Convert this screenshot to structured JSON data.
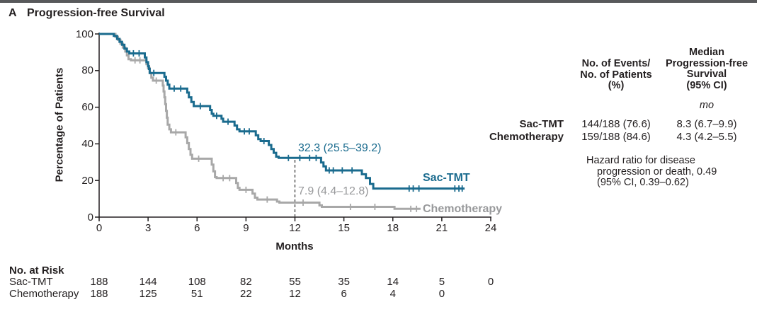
{
  "panel_label": "A",
  "title": "Progression-free Survival",
  "axes": {
    "x_label": "Months",
    "y_label": "Percentage of Patients"
  },
  "annotations": {
    "sac_tmt_rate": "32.3 (25.5–39.2)",
    "chemo_rate": "7.9 (4.4–12.8)",
    "sac_tmt_curve_label": "Sac-TMT",
    "chemo_curve_label": "Chemotherapy"
  },
  "stats_table": {
    "col1_header_lines": [
      "No. of Events/",
      "No. of Patients",
      "(%)"
    ],
    "col2_header_lines": [
      "Median",
      "Progression-free",
      "Survival",
      "(95% CI)"
    ],
    "unit": "mo",
    "rows": [
      {
        "label": "Sac-TMT",
        "events": "144/188 (76.6)",
        "median": "8.3 (6.7–9.9)"
      },
      {
        "label": "Chemotherapy",
        "events": "159/188 (84.6)",
        "median": "4.3 (4.2–5.5)"
      }
    ],
    "hazard_lines": [
      "Hazard ratio for disease",
      "progression or death, 0.49",
      "(95% CI, 0.39–0.62)"
    ]
  },
  "at_risk": {
    "title": "No. at Risk",
    "rows": [
      {
        "label": "Sac-TMT",
        "values": [
          188,
          144,
          108,
          82,
          55,
          35,
          14,
          5,
          0
        ]
      },
      {
        "label": "Chemotherapy",
        "values": [
          188,
          125,
          51,
          22,
          12,
          6,
          4,
          0
        ]
      }
    ]
  },
  "colors": {
    "sac_tmt": "#1a6b8e",
    "chemo_line": "#a8a8a8",
    "chemo_text": "#98999b",
    "text": "#231f20",
    "top_bar": "#58595b",
    "dashed_line": "#3c3c3c"
  },
  "chart_data": {
    "type": "line",
    "subtype": "kaplan-meier-step",
    "title": "Progression-free Survival",
    "xlabel": "Months",
    "ylabel": "Percentage of Patients",
    "xlim": [
      0,
      24
    ],
    "ylim": [
      0,
      100
    ],
    "x_ticks": [
      0,
      3,
      6,
      9,
      12,
      15,
      18,
      21,
      24
    ],
    "y_ticks": [
      0,
      20,
      40,
      60,
      80,
      100
    ],
    "grid": false,
    "landmark": {
      "x": 12,
      "sac_tmt_value": 32.3,
      "sac_tmt_ci": [
        25.5,
        39.2
      ],
      "chemo_value": 7.9,
      "chemo_ci": [
        4.4,
        12.8
      ]
    },
    "medians": {
      "sac_tmt": 8.3,
      "chemo": 4.3
    },
    "series": [
      {
        "name": "Chemotherapy",
        "color": "#a8a8a8",
        "points": [
          [
            0,
            100
          ],
          [
            1.0,
            100
          ],
          [
            1.0,
            98.4
          ],
          [
            1.15,
            98.4
          ],
          [
            1.15,
            96.8
          ],
          [
            1.3,
            96.8
          ],
          [
            1.3,
            94.7
          ],
          [
            1.45,
            94.7
          ],
          [
            1.45,
            92.6
          ],
          [
            1.6,
            92.6
          ],
          [
            1.6,
            90.4
          ],
          [
            1.7,
            90.4
          ],
          [
            1.7,
            88.3
          ],
          [
            1.8,
            88.3
          ],
          [
            1.8,
            86.2
          ],
          [
            1.95,
            86.2
          ],
          [
            1.95,
            85.6
          ],
          [
            2.9,
            85.6
          ],
          [
            2.9,
            83.5
          ],
          [
            3.0,
            83.5
          ],
          [
            3.0,
            81.4
          ],
          [
            3.1,
            81.4
          ],
          [
            3.1,
            78.7
          ],
          [
            3.2,
            78.7
          ],
          [
            3.2,
            76.1
          ],
          [
            3.3,
            76.1
          ],
          [
            3.3,
            74.5
          ],
          [
            3.9,
            74.5
          ],
          [
            3.9,
            71.8
          ],
          [
            3.95,
            71.8
          ],
          [
            3.95,
            68.6
          ],
          [
            4.0,
            68.6
          ],
          [
            4.0,
            65.4
          ],
          [
            4.05,
            65.4
          ],
          [
            4.05,
            61.7
          ],
          [
            4.1,
            61.7
          ],
          [
            4.1,
            58.0
          ],
          [
            4.15,
            58.0
          ],
          [
            4.15,
            54.3
          ],
          [
            4.2,
            54.3
          ],
          [
            4.2,
            50.5
          ],
          [
            4.3,
            50.5
          ],
          [
            4.3,
            47.9
          ],
          [
            4.4,
            47.9
          ],
          [
            4.4,
            46.3
          ],
          [
            5.3,
            46.3
          ],
          [
            5.3,
            43.6
          ],
          [
            5.4,
            43.6
          ],
          [
            5.4,
            40.4
          ],
          [
            5.5,
            40.4
          ],
          [
            5.5,
            37.2
          ],
          [
            5.6,
            37.2
          ],
          [
            5.6,
            34.0
          ],
          [
            5.7,
            34.0
          ],
          [
            5.7,
            31.9
          ],
          [
            6.9,
            31.9
          ],
          [
            6.9,
            28.7
          ],
          [
            7.0,
            28.7
          ],
          [
            7.0,
            25.0
          ],
          [
            7.1,
            25.0
          ],
          [
            7.1,
            21.8
          ],
          [
            7.2,
            21.8
          ],
          [
            7.2,
            21.3
          ],
          [
            8.4,
            21.3
          ],
          [
            8.4,
            18.6
          ],
          [
            8.5,
            18.6
          ],
          [
            8.5,
            16.0
          ],
          [
            8.6,
            16.0
          ],
          [
            8.6,
            14.9
          ],
          [
            9.4,
            14.9
          ],
          [
            9.4,
            12.8
          ],
          [
            9.55,
            12.8
          ],
          [
            9.55,
            10.6
          ],
          [
            9.7,
            10.6
          ],
          [
            9.7,
            9.6
          ],
          [
            10.9,
            9.6
          ],
          [
            10.9,
            8.5
          ],
          [
            11.05,
            8.5
          ],
          [
            11.05,
            7.9
          ],
          [
            13.5,
            7.9
          ],
          [
            13.5,
            6.4
          ],
          [
            13.65,
            6.4
          ],
          [
            13.65,
            5.6
          ],
          [
            18.1,
            5.6
          ],
          [
            18.1,
            4.5
          ],
          [
            19.7,
            4.5
          ]
        ],
        "censors": [
          [
            2.2,
            85.6
          ],
          [
            2.5,
            85.6
          ],
          [
            3.5,
            74.5
          ],
          [
            4.7,
            46.3
          ],
          [
            6.1,
            31.9
          ],
          [
            7.6,
            21.3
          ],
          [
            8.0,
            21.3
          ],
          [
            9.0,
            14.9
          ],
          [
            10.3,
            9.6
          ],
          [
            12.5,
            7.9
          ],
          [
            15.4,
            5.6
          ],
          [
            16.9,
            5.6
          ],
          [
            19.1,
            4.5
          ],
          [
            19.45,
            4.5
          ]
        ]
      },
      {
        "name": "Sac-TMT",
        "color": "#1a6b8e",
        "points": [
          [
            0,
            100
          ],
          [
            0.9,
            100
          ],
          [
            0.9,
            98.9
          ],
          [
            1.1,
            98.9
          ],
          [
            1.1,
            97.3
          ],
          [
            1.25,
            97.3
          ],
          [
            1.25,
            95.7
          ],
          [
            1.4,
            95.7
          ],
          [
            1.4,
            94.1
          ],
          [
            1.55,
            94.1
          ],
          [
            1.55,
            92.0
          ],
          [
            1.7,
            92.0
          ],
          [
            1.7,
            90.4
          ],
          [
            1.85,
            90.4
          ],
          [
            1.85,
            89.4
          ],
          [
            2.8,
            89.4
          ],
          [
            2.8,
            87.2
          ],
          [
            2.9,
            87.2
          ],
          [
            2.9,
            84.6
          ],
          [
            3.0,
            84.6
          ],
          [
            3.0,
            82.4
          ],
          [
            3.05,
            82.4
          ],
          [
            3.05,
            80.9
          ],
          [
            3.1,
            80.9
          ],
          [
            3.1,
            78.7
          ],
          [
            4.0,
            78.7
          ],
          [
            4.0,
            76.6
          ],
          [
            4.1,
            76.6
          ],
          [
            4.1,
            74.5
          ],
          [
            4.2,
            74.5
          ],
          [
            4.2,
            72.3
          ],
          [
            4.3,
            72.3
          ],
          [
            4.3,
            70.2
          ],
          [
            5.4,
            70.2
          ],
          [
            5.4,
            68.0
          ],
          [
            5.5,
            68.0
          ],
          [
            5.5,
            65.4
          ],
          [
            5.65,
            65.4
          ],
          [
            5.65,
            62.8
          ],
          [
            5.8,
            62.8
          ],
          [
            5.8,
            60.6
          ],
          [
            6.8,
            60.6
          ],
          [
            6.8,
            58.5
          ],
          [
            6.9,
            58.5
          ],
          [
            6.9,
            56.4
          ],
          [
            7.0,
            56.4
          ],
          [
            7.0,
            55.3
          ],
          [
            7.5,
            55.3
          ],
          [
            7.5,
            53.7
          ],
          [
            7.6,
            53.7
          ],
          [
            7.6,
            52.1
          ],
          [
            8.3,
            52.1
          ],
          [
            8.3,
            50.0
          ],
          [
            8.45,
            50.0
          ],
          [
            8.45,
            47.9
          ],
          [
            8.6,
            47.9
          ],
          [
            8.6,
            46.8
          ],
          [
            9.6,
            46.8
          ],
          [
            9.6,
            44.7
          ],
          [
            9.75,
            44.7
          ],
          [
            9.75,
            42.6
          ],
          [
            9.9,
            42.6
          ],
          [
            9.9,
            41.5
          ],
          [
            10.4,
            41.5
          ],
          [
            10.4,
            39.4
          ],
          [
            10.55,
            39.4
          ],
          [
            10.55,
            37.2
          ],
          [
            10.7,
            37.2
          ],
          [
            10.7,
            35.1
          ],
          [
            10.85,
            35.1
          ],
          [
            10.85,
            33.0
          ],
          [
            11.0,
            33.0
          ],
          [
            11.0,
            32.3
          ],
          [
            13.6,
            32.3
          ],
          [
            13.6,
            29.8
          ],
          [
            13.75,
            29.8
          ],
          [
            13.75,
            27.7
          ],
          [
            13.9,
            27.7
          ],
          [
            13.9,
            25.5
          ],
          [
            16.1,
            25.5
          ],
          [
            16.1,
            23.4
          ],
          [
            16.35,
            23.4
          ],
          [
            16.35,
            21.3
          ],
          [
            16.6,
            21.3
          ],
          [
            16.6,
            18.1
          ],
          [
            16.8,
            18.1
          ],
          [
            16.8,
            15.6
          ],
          [
            22.4,
            15.6
          ]
        ],
        "censors": [
          [
            2.1,
            89.4
          ],
          [
            2.45,
            89.4
          ],
          [
            3.35,
            78.7
          ],
          [
            4.6,
            70.2
          ],
          [
            5.0,
            70.2
          ],
          [
            6.2,
            60.6
          ],
          [
            7.2,
            55.3
          ],
          [
            7.9,
            52.1
          ],
          [
            8.9,
            46.8
          ],
          [
            9.2,
            46.8
          ],
          [
            10.1,
            41.5
          ],
          [
            11.6,
            32.3
          ],
          [
            12.3,
            32.3
          ],
          [
            12.9,
            32.3
          ],
          [
            13.3,
            32.3
          ],
          [
            14.1,
            25.5
          ],
          [
            14.35,
            25.5
          ],
          [
            14.9,
            25.5
          ],
          [
            15.5,
            25.5
          ],
          [
            19.0,
            15.6
          ],
          [
            19.25,
            15.6
          ],
          [
            19.6,
            15.6
          ],
          [
            21.8,
            15.6
          ],
          [
            22.05,
            15.6
          ],
          [
            22.25,
            15.6
          ]
        ]
      }
    ]
  }
}
